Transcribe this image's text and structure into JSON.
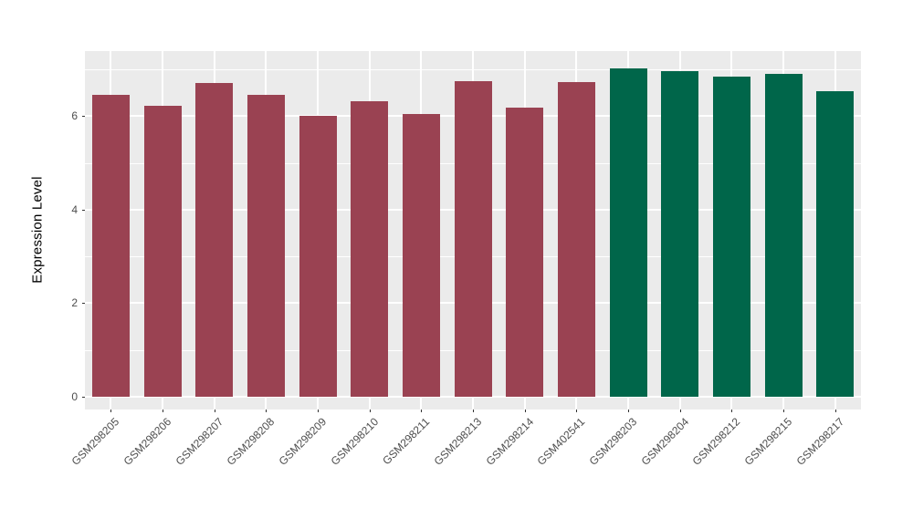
{
  "chart_data": {
    "type": "bar",
    "title": "",
    "xlabel": "",
    "ylabel": "Expression Level",
    "categories": [
      "GSM298205",
      "GSM298206",
      "GSM298207",
      "GSM298208",
      "GSM298209",
      "GSM298210",
      "GSM298211",
      "GSM298213",
      "GSM298214",
      "GSM402541",
      "GSM298203",
      "GSM298204",
      "GSM298212",
      "GSM298215",
      "GSM298217"
    ],
    "values": [
      6.46,
      6.21,
      6.71,
      6.46,
      6.01,
      6.31,
      6.05,
      6.74,
      6.18,
      6.72,
      7.02,
      6.95,
      6.85,
      6.9,
      6.53
    ],
    "bar_colors": [
      "#9a4252",
      "#9a4252",
      "#9a4252",
      "#9a4252",
      "#9a4252",
      "#9a4252",
      "#9a4252",
      "#9a4252",
      "#9a4252",
      "#9a4252",
      "#00664a",
      "#00664a",
      "#00664a",
      "#00664a",
      "#00664a"
    ],
    "group_colors": {
      "group_1": "#9a4252",
      "group_2": "#00664a"
    },
    "yticks": [
      0,
      2,
      4,
      6
    ],
    "yticks_minor": [
      1,
      3,
      5,
      7
    ],
    "ylim": [
      0,
      7.4
    ],
    "grid": true,
    "legend_position": "none",
    "style": {
      "panel_background": "#ebebeb",
      "grid_color": "#ffffff",
      "tick_label_color": "#4d4d4d",
      "tick_mark_color": "#333333",
      "axis_title_color": "#000000",
      "figure_background": "#ffffff"
    }
  }
}
